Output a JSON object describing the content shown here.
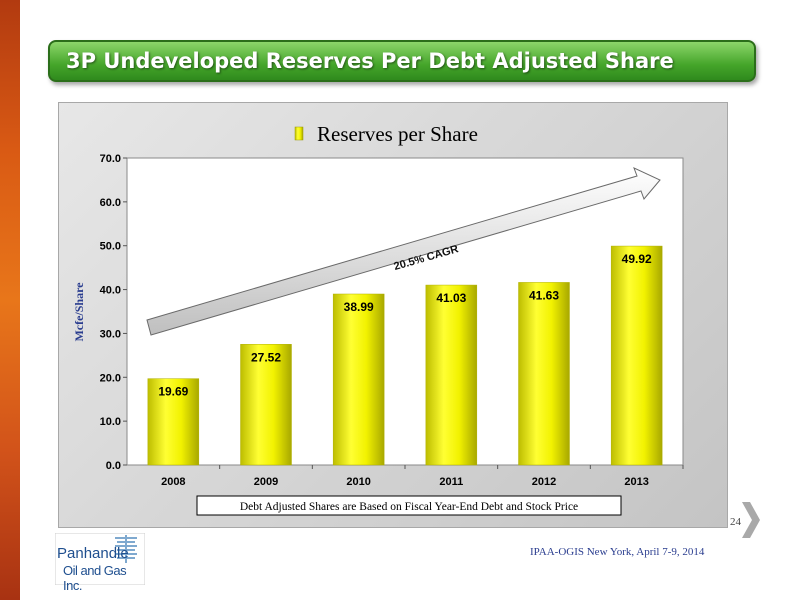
{
  "slide": {
    "title": "3P Undeveloped Reserves Per Debt Adjusted Share",
    "page_number": "24",
    "footer": "IPAA-OGIS New York, April 7-9, 2014",
    "logo": {
      "name": "Panhandle",
      "subtitle": "Oil and Gas Inc."
    }
  },
  "chart_data": {
    "type": "bar",
    "title": "",
    "categories": [
      "2008",
      "2009",
      "2010",
      "2011",
      "2012",
      "2013"
    ],
    "series": [
      {
        "name": "Reserves per Share",
        "values": [
          19.69,
          27.52,
          38.99,
          41.03,
          41.63,
          49.92
        ]
      }
    ],
    "data_labels": [
      "19.69",
      "27.52",
      "38.99",
      "41.03",
      "41.63",
      "49.92"
    ],
    "ylabel": "Mcfe/Share",
    "xlabel": "",
    "ylim": [
      0,
      70
    ],
    "yticks": [
      "0.0",
      "10.0",
      "20.0",
      "30.0",
      "40.0",
      "50.0",
      "60.0",
      "70.0"
    ],
    "grid": false,
    "legend": "top-center",
    "annotation": "20.5% CAGR",
    "note": "Debt Adjusted Shares are Based on Fiscal Year-End Debt and Stock Price",
    "colors": {
      "bar": "#f2f200",
      "bar_edge": "#c8c800",
      "plot_bg": "#ffffff",
      "ylabel": "#2a3d8f"
    }
  }
}
